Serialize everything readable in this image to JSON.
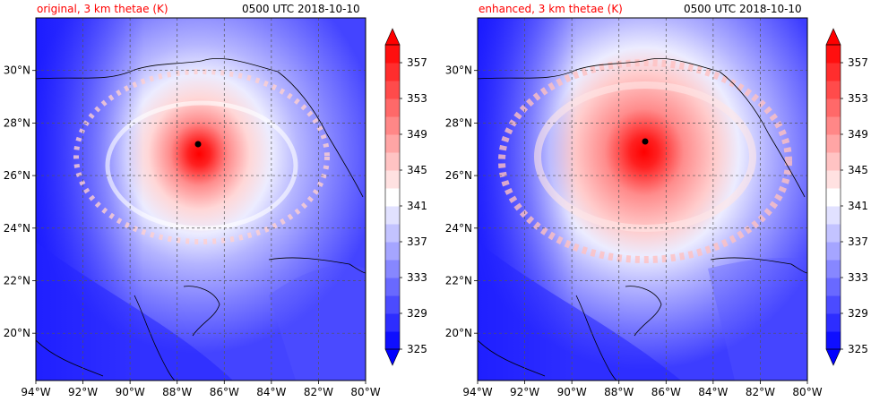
{
  "chart_data": [
    {
      "type": "heatmap",
      "title_left": "original, 3 km thetae (K)",
      "title_right": "0500 UTC 2018-10-10",
      "x_tick_labels": [
        "94°W",
        "92°W",
        "90°W",
        "88°W",
        "86°W",
        "84°W",
        "82°W",
        "80°W"
      ],
      "y_tick_labels": [
        "20°N",
        "22°N",
        "24°N",
        "26°N",
        "28°N",
        "30°N"
      ],
      "xlim": [
        -94,
        -80
      ],
      "ylim": [
        18.2,
        32.0
      ],
      "grid": true,
      "storm_center": {
        "lon": -87.1,
        "lat": 27.3
      },
      "colorbar": {
        "ticks": [
          325,
          329,
          333,
          337,
          341,
          345,
          349,
          353,
          357
        ],
        "range": [
          325,
          359
        ],
        "extend": "both"
      }
    },
    {
      "type": "heatmap",
      "title_left": "enhanced, 3 km thetae (K)",
      "title_right": "0500 UTC 2018-10-10",
      "x_tick_labels": [
        "94°W",
        "92°W",
        "90°W",
        "88°W",
        "86°W",
        "84°W",
        "82°W",
        "80°W"
      ],
      "y_tick_labels": [
        "20°N",
        "22°N",
        "24°N",
        "26°N",
        "28°N",
        "30°N"
      ],
      "xlim": [
        -94,
        -80
      ],
      "ylim": [
        18.2,
        32.0
      ],
      "grid": true,
      "storm_center": {
        "lon": -86.9,
        "lat": 27.4
      },
      "colorbar": {
        "ticks": [
          325,
          329,
          333,
          337,
          341,
          345,
          349,
          353,
          357
        ],
        "range": [
          325,
          359
        ],
        "extend": "both"
      }
    }
  ],
  "colormap": {
    "low": "#0000ff",
    "mid": "#ffffff",
    "high": "#ff0000"
  }
}
